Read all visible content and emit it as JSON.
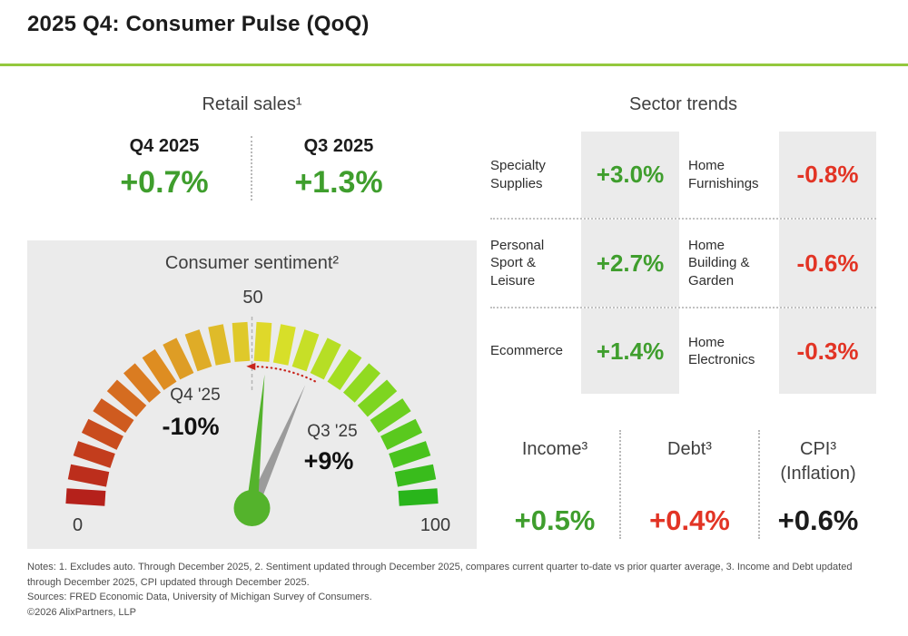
{
  "header": {
    "title": "2025 Q4: Consumer Pulse (QoQ)"
  },
  "colors": {
    "green": "#3f9e2d",
    "red": "#e23425",
    "dark": "#1c1c1c",
    "heading_gray": "#3f3f3f",
    "panel_gray": "#ebebeb",
    "accent_line": "#94c83d",
    "divider": "#b9b9b9",
    "needle_green": "#54b32c",
    "needle_gray": "#9b9b9b",
    "trend_arrow_red": "#c9251d"
  },
  "retail_sales": {
    "heading": "Retail sales¹",
    "periods": [
      {
        "label": "Q4 2025",
        "value": "+0.7%"
      },
      {
        "label": "Q3 2025",
        "value": "+1.3%"
      }
    ]
  },
  "sentiment": {
    "heading": "Consumer sentiment²"
  },
  "sector_trends": {
    "heading": "Sector trends",
    "rows": [
      {
        "left_name": "Specialty Supplies",
        "left_value": "+3.0%",
        "right_name": "Home Furnishings",
        "right_value": "-0.8%"
      },
      {
        "left_name": "Personal Sport & Leisure",
        "left_value": "+2.7%",
        "right_name": "Home Building & Garden",
        "right_value": "-0.6%"
      },
      {
        "left_name": "Ecommerce",
        "left_value": "+1.4%",
        "right_name": "Home Electronics",
        "right_value": "-0.3%"
      }
    ]
  },
  "indicators": [
    {
      "label": "Income³",
      "sublabel": "",
      "value": "+0.5%",
      "color": "green"
    },
    {
      "label": "Debt³",
      "sublabel": "",
      "value": "+0.4%",
      "color": "red"
    },
    {
      "label": "CPI³",
      "sublabel": "(Inflation)",
      "value": "+0.6%",
      "color": "dark"
    }
  ],
  "footer": {
    "notes": "Notes: 1. Excludes auto. Through December 2025, 2. Sentiment updated through December 2025, compares current quarter to-date vs prior quarter average, 3. Income and Debt updated through December 2025, CPI updated through December 2025.",
    "sources": "Sources: FRED Economic Data, University of Michigan Survey of Consumers.",
    "copyright": "©2026 AlixPartners, LLP"
  },
  "chart_data": [
    {
      "type": "table",
      "title": "Retail sales (QoQ %)",
      "categories": [
        "Q4 2025",
        "Q3 2025"
      ],
      "values": [
        0.7,
        1.3
      ]
    },
    {
      "type": "gauge",
      "title": "Consumer sentiment",
      "axis_range": [
        0,
        100
      ],
      "min_label": "0",
      "mid_label": "50",
      "max_label": "100",
      "segments": 24,
      "needles": [
        {
          "period": "Q4 '25",
          "change_label": "-10%",
          "position": 53,
          "color_key": "needle_green"
        },
        {
          "period": "Q3 '25",
          "change_label": "+9%",
          "position": 63,
          "color_key": "needle_gray"
        }
      ]
    },
    {
      "type": "table",
      "title": "Sector trends (QoQ %)",
      "rows": [
        [
          "Specialty Supplies",
          3.0
        ],
        [
          "Personal Sport & Leisure",
          2.7
        ],
        [
          "Ecommerce",
          1.4
        ],
        [
          "Home Furnishings",
          -0.8
        ],
        [
          "Home Building & Garden",
          -0.6
        ],
        [
          "Home Electronics",
          -0.3
        ]
      ]
    },
    {
      "type": "table",
      "title": "Macro indicators (QoQ %)",
      "categories": [
        "Income",
        "Debt",
        "CPI (Inflation)"
      ],
      "values": [
        0.5,
        0.4,
        0.6
      ]
    }
  ]
}
